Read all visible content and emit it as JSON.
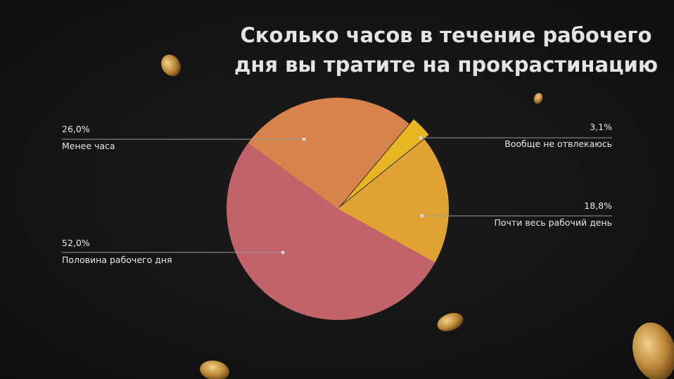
{
  "chart_data": {
    "type": "pie",
    "title": [
      "Сколько часов в течение рабочего",
      "дня вы тратите на прокрастинацию"
    ],
    "categories": [
      "Вообще не отвлекаюсь",
      "Почти весь рабочий день",
      "Половина рабочего дня",
      "Менее часа"
    ],
    "values": [
      3.1,
      18.8,
      52.0,
      26.0
    ],
    "value_labels": [
      "3,1%",
      "18,8%",
      "52,0%",
      "26,0%"
    ],
    "colors": [
      "#e7b622",
      "#e0a135",
      "#c2636b",
      "#d6844c"
    ]
  }
}
